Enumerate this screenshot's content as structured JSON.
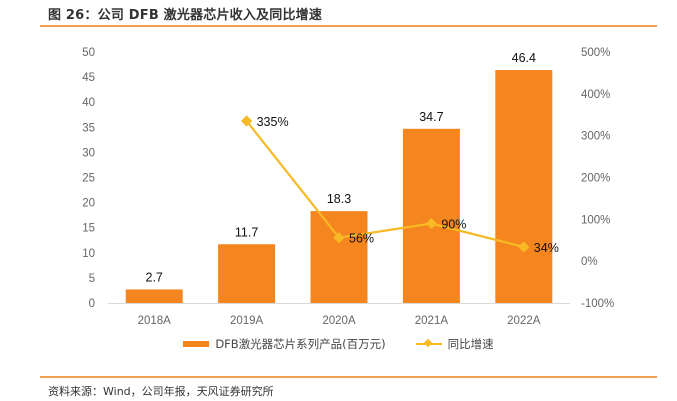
{
  "header": {
    "title": "图 26：公司 DFB 激光器芯片收入及同比增速"
  },
  "footer": {
    "source": "资料来源：Wind，公司年报，天风证券研究所"
  },
  "colors": {
    "bar": "#f5851f",
    "line": "#f7b924",
    "accent_rule": "#f0a050"
  },
  "chart_data": {
    "type": "bar",
    "title": "公司 DFB 激光器芯片收入及同比增速",
    "categories": [
      "2018A",
      "2019A",
      "2020A",
      "2021A",
      "2022A"
    ],
    "series": [
      {
        "name": "DFB激光器芯片系列产品(百万元)",
        "type": "bar",
        "axis": "left",
        "values": [
          2.7,
          11.7,
          18.3,
          34.7,
          46.4
        ],
        "labels": [
          "2.7",
          "11.7",
          "18.3",
          "34.7",
          "46.4"
        ]
      },
      {
        "name": "同比增速",
        "type": "line",
        "axis": "right",
        "values": [
          null,
          335,
          56,
          90,
          34
        ],
        "labels": [
          "",
          "335%",
          "56%",
          "90%",
          "34%"
        ]
      }
    ],
    "y_left": {
      "ylim": [
        0,
        50
      ],
      "ticks": [
        "0",
        "5",
        "10",
        "15",
        "20",
        "25",
        "30",
        "35",
        "40",
        "45",
        "50"
      ]
    },
    "y_right": {
      "ylim": [
        -100,
        500
      ],
      "ticks": [
        "-100%",
        "0%",
        "100%",
        "200%",
        "300%",
        "400%",
        "500%"
      ]
    },
    "xlabel": "",
    "ylabel": "",
    "grid": false,
    "legend": "bottom"
  }
}
